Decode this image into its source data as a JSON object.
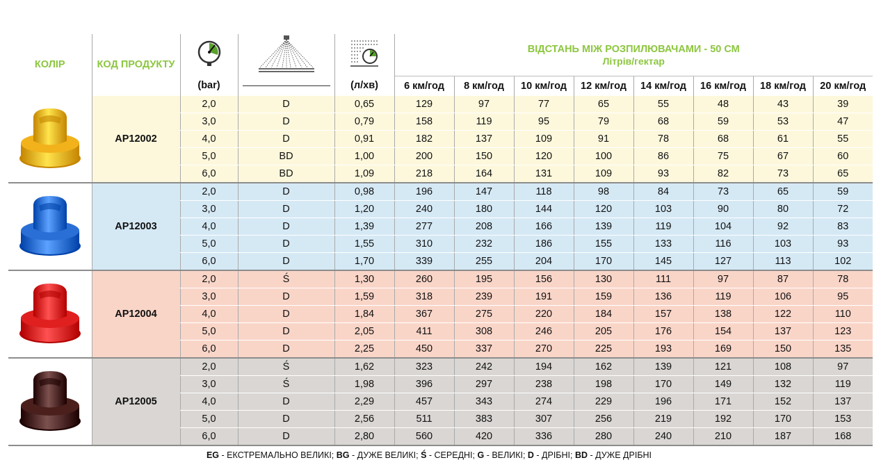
{
  "headers": {
    "color": "КОЛІР",
    "code": "КОД ПРОДУКТУ",
    "pressure_unit": "(bar)",
    "flow_unit": "(л/хв)",
    "distance_title": "ВІДСТАНЬ МІЖ РОЗПИЛЮВАЧАМИ - 50 СМ",
    "distance_subtitle": "Літрів/гектар",
    "speeds": [
      "6 км/год",
      "8 км/год",
      "10 км/год",
      "12 км/год",
      "14 км/год",
      "16 км/год",
      "18 км/год",
      "20 км/год"
    ]
  },
  "groups": [
    {
      "code": "AP12002",
      "color": "#f2b21b",
      "rows": [
        {
          "bar": "2,0",
          "drop": "D",
          "flow": "0,65",
          "values": [
            "129",
            "97",
            "77",
            "65",
            "55",
            "48",
            "43",
            "39"
          ]
        },
        {
          "bar": "3,0",
          "drop": "D",
          "flow": "0,79",
          "values": [
            "158",
            "119",
            "95",
            "79",
            "68",
            "59",
            "53",
            "47"
          ]
        },
        {
          "bar": "4,0",
          "drop": "D",
          "flow": "0,91",
          "values": [
            "182",
            "137",
            "109",
            "91",
            "78",
            "68",
            "61",
            "55"
          ]
        },
        {
          "bar": "5,0",
          "drop": "BD",
          "flow": "1,00",
          "values": [
            "200",
            "150",
            "120",
            "100",
            "86",
            "75",
            "67",
            "60"
          ]
        },
        {
          "bar": "6,0",
          "drop": "BD",
          "flow": "1,09",
          "values": [
            "218",
            "164",
            "131",
            "109",
            "93",
            "82",
            "73",
            "65"
          ]
        }
      ]
    },
    {
      "code": "AP12003",
      "color": "#2a6fd6",
      "rows": [
        {
          "bar": "2,0",
          "drop": "D",
          "flow": "0,98",
          "values": [
            "196",
            "147",
            "118",
            "98",
            "84",
            "73",
            "65",
            "59"
          ]
        },
        {
          "bar": "3,0",
          "drop": "D",
          "flow": "1,20",
          "values": [
            "240",
            "180",
            "144",
            "120",
            "103",
            "90",
            "80",
            "72"
          ]
        },
        {
          "bar": "4,0",
          "drop": "D",
          "flow": "1,39",
          "values": [
            "277",
            "208",
            "166",
            "139",
            "119",
            "104",
            "92",
            "83"
          ]
        },
        {
          "bar": "5,0",
          "drop": "D",
          "flow": "1,55",
          "values": [
            "310",
            "232",
            "186",
            "155",
            "133",
            "116",
            "103",
            "93"
          ]
        },
        {
          "bar": "6,0",
          "drop": "D",
          "flow": "1,70",
          "values": [
            "339",
            "255",
            "204",
            "170",
            "145",
            "127",
            "113",
            "102"
          ]
        }
      ]
    },
    {
      "code": "AP12004",
      "color": "#e01f1f",
      "rows": [
        {
          "bar": "2,0",
          "drop": "Ś",
          "flow": "1,30",
          "values": [
            "260",
            "195",
            "156",
            "130",
            "111",
            "97",
            "87",
            "78"
          ]
        },
        {
          "bar": "3,0",
          "drop": "D",
          "flow": "1,59",
          "values": [
            "318",
            "239",
            "191",
            "159",
            "136",
            "119",
            "106",
            "95"
          ]
        },
        {
          "bar": "4,0",
          "drop": "D",
          "flow": "1,84",
          "values": [
            "367",
            "275",
            "220",
            "184",
            "157",
            "138",
            "122",
            "110"
          ]
        },
        {
          "bar": "5,0",
          "drop": "D",
          "flow": "2,05",
          "values": [
            "411",
            "308",
            "246",
            "205",
            "176",
            "154",
            "137",
            "123"
          ]
        },
        {
          "bar": "6,0",
          "drop": "D",
          "flow": "2,25",
          "values": [
            "450",
            "337",
            "270",
            "225",
            "193",
            "169",
            "150",
            "135"
          ]
        }
      ]
    },
    {
      "code": "AP12005",
      "color": "#4a1f1c",
      "rows": [
        {
          "bar": "2,0",
          "drop": "Ś",
          "flow": "1,62",
          "values": [
            "323",
            "242",
            "194",
            "162",
            "139",
            "121",
            "108",
            "97"
          ]
        },
        {
          "bar": "3,0",
          "drop": "Ś",
          "flow": "1,98",
          "values": [
            "396",
            "297",
            "238",
            "198",
            "170",
            "149",
            "132",
            "119"
          ]
        },
        {
          "bar": "4,0",
          "drop": "D",
          "flow": "2,29",
          "values": [
            "457",
            "343",
            "274",
            "229",
            "196",
            "171",
            "152",
            "137"
          ]
        },
        {
          "bar": "5,0",
          "drop": "D",
          "flow": "2,56",
          "values": [
            "511",
            "383",
            "307",
            "256",
            "219",
            "192",
            "170",
            "153"
          ]
        },
        {
          "bar": "6,0",
          "drop": "D",
          "flow": "2,80",
          "values": [
            "560",
            "420",
            "336",
            "280",
            "240",
            "210",
            "187",
            "168"
          ]
        }
      ]
    }
  ],
  "footer": [
    {
      "abbr": "EG",
      "text": " - ЕКСТРЕМАЛЬНО ВЕЛИКІ; "
    },
    {
      "abbr": "BG",
      "text": " - ДУЖЕ ВЕЛИКІ; "
    },
    {
      "abbr": "Ś",
      "text": " - СЕРЕДНІ; "
    },
    {
      "abbr": "G",
      "text": " - ВЕЛИКІ; "
    },
    {
      "abbr": "D",
      "text": " - ДРІБНІ; "
    },
    {
      "abbr": "BD",
      "text": " - ДУЖЕ ДРІБНІ"
    }
  ],
  "icons": {
    "pressure": "pressure-gauge-icon",
    "spray": "spray-fan-icon",
    "flow": "flow-meter-icon"
  }
}
